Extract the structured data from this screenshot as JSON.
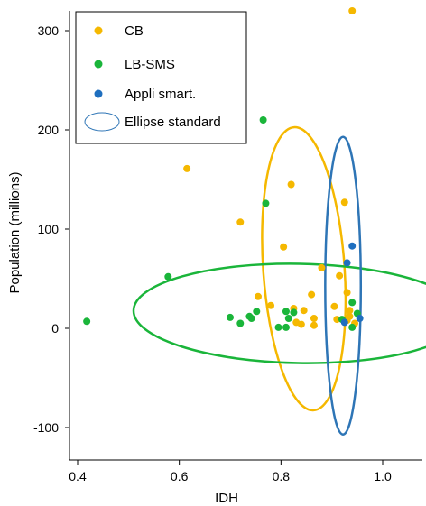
{
  "chart_data": {
    "type": "scatter",
    "xlabel": "IDH",
    "ylabel": "Population (millions)",
    "xlim": [
      0.4,
      1.0
    ],
    "ylim": [
      -125,
      310
    ],
    "x_ticks": [
      0.4,
      0.6,
      0.8,
      1.0
    ],
    "x_tick_labels": [
      "0.4",
      "0.6",
      "0.8",
      "1.0"
    ],
    "y_ticks": [
      -100,
      0,
      100,
      200,
      300
    ],
    "y_tick_labels": [
      "-100",
      "0",
      "100",
      "200",
      "300"
    ],
    "grid": false,
    "legend_position": "top-left",
    "legend_ellipse_label": "Ellipse standard",
    "legend_ellipse_color": "#2e75b6",
    "series": [
      {
        "name": "CB",
        "color": "#f5b800",
        "points": [
          [
            0.615,
            161
          ],
          [
            0.72,
            107
          ],
          [
            0.805,
            82
          ],
          [
            0.82,
            145
          ],
          [
            0.925,
            127
          ],
          [
            0.94,
            320
          ],
          [
            0.88,
            61
          ],
          [
            0.915,
            53
          ],
          [
            0.755,
            32
          ],
          [
            0.78,
            23
          ],
          [
            0.825,
            20
          ],
          [
            0.845,
            18
          ],
          [
            0.86,
            34
          ],
          [
            0.905,
            22
          ],
          [
            0.93,
            36
          ],
          [
            0.935,
            18
          ],
          [
            0.865,
            10
          ],
          [
            0.91,
            9
          ],
          [
            0.83,
            6
          ],
          [
            0.84,
            4
          ],
          [
            0.865,
            3
          ],
          [
            0.93,
            8
          ],
          [
            0.935,
            12
          ],
          [
            0.945,
            5
          ]
        ]
      },
      {
        "name": "LB-SMS",
        "color": "#1ab53a",
        "points": [
          [
            0.418,
            7
          ],
          [
            0.578,
            52
          ],
          [
            0.7,
            11
          ],
          [
            0.72,
            5
          ],
          [
            0.738,
            12
          ],
          [
            0.742,
            10
          ],
          [
            0.752,
            17
          ],
          [
            0.765,
            210
          ],
          [
            0.77,
            126
          ],
          [
            0.795,
            1
          ],
          [
            0.81,
            1
          ],
          [
            0.81,
            17
          ],
          [
            0.815,
            10
          ],
          [
            0.825,
            16
          ],
          [
            0.92,
            9
          ],
          [
            0.94,
            26
          ],
          [
            0.94,
            1
          ],
          [
            0.95,
            15
          ]
        ]
      },
      {
        "name": "Appli smart.",
        "color": "#1f6fbf",
        "points": [
          [
            0.94,
            83
          ],
          [
            0.93,
            66
          ],
          [
            0.955,
            10
          ],
          [
            0.925,
            6
          ]
        ]
      }
    ],
    "ellipses": [
      {
        "series": "CB",
        "color": "#f5b800",
        "cx": 0.845,
        "cy": 60,
        "rx": 0.08,
        "ry": 143,
        "rotation": -4
      },
      {
        "series": "LB-SMS",
        "color": "#1ab53a",
        "cx": 0.835,
        "cy": 15,
        "rx": 0.325,
        "ry": 50,
        "rotation": 1
      },
      {
        "series": "Appli smart.",
        "color": "#2e75b6",
        "cx": 0.922,
        "cy": 43,
        "rx": 0.035,
        "ry": 150,
        "rotation": 0
      }
    ]
  }
}
